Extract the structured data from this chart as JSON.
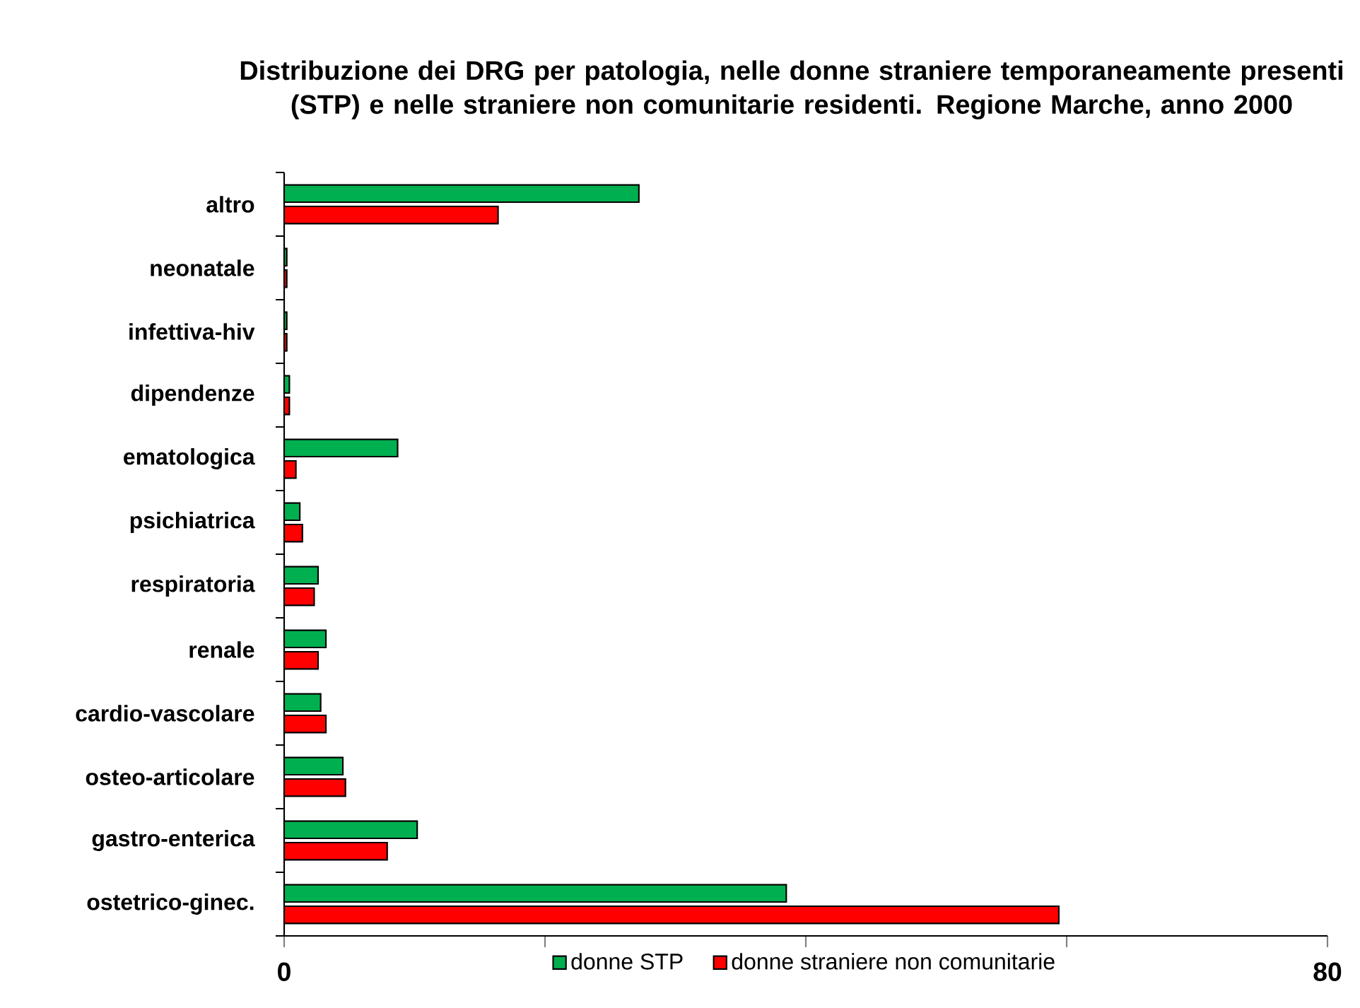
{
  "chart_data": {
    "type": "bar",
    "orientation": "horizontal",
    "title": "Distribuzione dei DRG per patologia, nelle donne straniere temporaneamente presenti (STP) e nelle straniere non comunitarie residenti. Regione Marche, anno 2000",
    "categories": [
      "altro",
      "neonatale",
      "infettiva-hiv",
      "dipendenze",
      "ematologica",
      "psichiatrica",
      "respiratoria",
      "renale",
      "cardio-vascolare",
      "osteo-articolare",
      "gastro-enterica",
      "ostetrico-ginec."
    ],
    "series": [
      {
        "name": "donne STP",
        "color": "#00b050",
        "values": [
          27.2,
          0.2,
          0.2,
          0.4,
          8.7,
          1.2,
          2.6,
          3.2,
          2.8,
          4.5,
          10.2,
          38.5
        ]
      },
      {
        "name": "donne straniere non comunitarie",
        "color": "#ff0000",
        "values": [
          16.4,
          0.2,
          0.2,
          0.4,
          0.9,
          1.4,
          2.3,
          2.6,
          3.2,
          4.7,
          7.9,
          59.4
        ]
      }
    ],
    "xlim": [
      0,
      80
    ],
    "xticks": [
      0,
      {
        "value": 20,
        "label": null
      },
      {
        "value": 40,
        "label": null
      },
      {
        "value": 60,
        "label": null
      },
      80
    ],
    "legend": "bottom",
    "grid": false
  }
}
